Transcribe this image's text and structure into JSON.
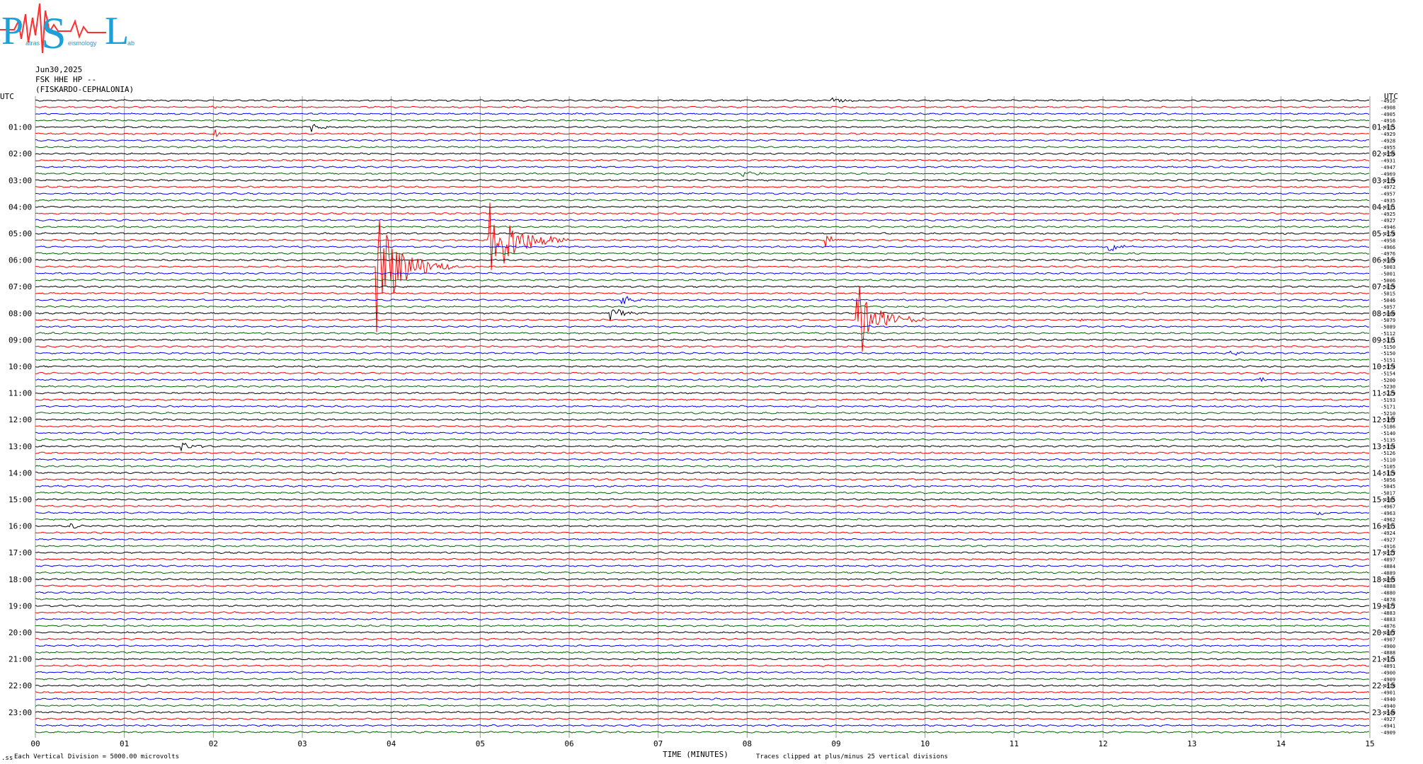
{
  "logo": {
    "letters": [
      "P",
      "S",
      "L"
    ],
    "small_words": [
      "atras",
      "eismology",
      "ab"
    ]
  },
  "header": {
    "date": "Jun30,2025",
    "channel": "FSK HHE HP --",
    "station": "(FISKARDO-CEPHALONIA)"
  },
  "footer": {
    "scale_note": "Each Vertical Division = 5000.00 microvolts",
    "clip_note": "Traces clipped at plus/minus 25 vertical divisions",
    "corner_mark": ".ss"
  },
  "colors": {
    "cycle": [
      "#000000",
      "#ff0000",
      "#0000ff",
      "#006400"
    ],
    "grid": "#9a9a9a",
    "logo_blue": "#1ca0d8",
    "logo_red": "#ff3030"
  },
  "chart_data": {
    "type": "helicorder",
    "xlabel": "TIME (MINUTES)",
    "x_ticks": [
      "00",
      "01",
      "02",
      "03",
      "04",
      "05",
      "06",
      "07",
      "08",
      "09",
      "10",
      "11",
      "12",
      "13",
      "14",
      "15"
    ],
    "xlim": [
      0,
      15
    ],
    "left_axis_label": "UTC",
    "right_axis_label": "UTC",
    "left_hour_labels": [
      "01:00",
      "02:00",
      "03:00",
      "04:00",
      "05:00",
      "06:00",
      "07:00",
      "08:00",
      "09:00",
      "10:00",
      "11:00",
      "12:00",
      "13:00",
      "14:00",
      "15:00",
      "16:00",
      "17:00",
      "18:00",
      "19:00",
      "20:00",
      "21:00",
      "22:00",
      "23:00"
    ],
    "right_hour_labels": [
      "01:15",
      "02:15",
      "03:15",
      "04:15",
      "05:15",
      "06:15",
      "07:15",
      "08:15",
      "09:15",
      "10:15",
      "11:15",
      "12:15",
      "13:15",
      "14:15",
      "15:15",
      "16:15",
      "17:15",
      "18:15",
      "19:15",
      "20:15",
      "21:15",
      "22:15",
      "23:15"
    ],
    "trace_count": 96,
    "trace_minutes": 15,
    "offsets": [
      "4916",
      "4908",
      "4905",
      "4916",
      "4915",
      "4929",
      "4928",
      "4955",
      "4956",
      "4931",
      "4947",
      "4969",
      "4939",
      "4972",
      "4957",
      "4935",
      "4931",
      "4925",
      "4927",
      "4946",
      "4978",
      "4958",
      "4966",
      "4976",
      "4989",
      "5003",
      "5001",
      "5006",
      "5019",
      "5015",
      "5046",
      "5057",
      "5060",
      "5079",
      "5089",
      "5112",
      "5131",
      "5150",
      "5150",
      "5151",
      "5174",
      "5154",
      "5200",
      "5230",
      "5229",
      "5193",
      "5171",
      "5210",
      "5197",
      "5186",
      "5140",
      "5135",
      "5114",
      "5126",
      "5110",
      "5105",
      "5119",
      "5056",
      "5045",
      "5017",
      "4985",
      "4967",
      "4963",
      "4962",
      "4951",
      "4924",
      "4927",
      "4916",
      "4917",
      "4897",
      "4884",
      "4889",
      "4893",
      "4888",
      "4880",
      "4878",
      "4877",
      "4883",
      "4883",
      "4876",
      "4887",
      "4907",
      "4900",
      "4888",
      "4911",
      "4891",
      "4900",
      "4909",
      "4918",
      "4901",
      "4940",
      "4940",
      "4940",
      "4927",
      "4941",
      "4909"
    ],
    "events": [
      {
        "trace": 0,
        "minute": 8.95,
        "amp": 0.55,
        "dur": 0.4
      },
      {
        "trace": 1,
        "minute": 2.0,
        "amp": 0.12,
        "dur": 0.6
      },
      {
        "trace": 4,
        "minute": 3.12,
        "amp": 0.55,
        "dur": 0.35
      },
      {
        "trace": 5,
        "minute": 2.02,
        "amp": 0.45,
        "dur": 0.2
      },
      {
        "trace": 11,
        "minute": 7.95,
        "amp": 0.45,
        "dur": 0.4
      },
      {
        "trace": 21,
        "minute": 8.9,
        "amp": 0.6,
        "dur": 0.35
      },
      {
        "trace": 22,
        "minute": 12.08,
        "amp": 0.7,
        "dur": 0.35
      },
      {
        "trace": 25,
        "minute": 3.85,
        "amp": 8.0,
        "dur": 0.9
      },
      {
        "trace": 21,
        "minute": 5.1,
        "amp": 7.0,
        "dur": 0.9
      },
      {
        "trace": 30,
        "minute": 6.55,
        "amp": 1.2,
        "dur": 0.5
      },
      {
        "trace": 32,
        "minute": 6.45,
        "amp": 1.1,
        "dur": 0.5
      },
      {
        "trace": 33,
        "minute": 9.25,
        "amp": 4.2,
        "dur": 0.8
      },
      {
        "trace": 33,
        "minute": 11.75,
        "amp": 0.25,
        "dur": 0.2
      },
      {
        "trace": 38,
        "minute": 13.45,
        "amp": 0.25,
        "dur": 0.45
      },
      {
        "trace": 42,
        "minute": 13.78,
        "amp": 0.3,
        "dur": 0.2
      },
      {
        "trace": 52,
        "minute": 1.65,
        "amp": 0.55,
        "dur": 0.45
      },
      {
        "trace": 53,
        "minute": 10.3,
        "amp": 0.25,
        "dur": 0.25
      },
      {
        "trace": 54,
        "minute": 4.8,
        "amp": 0.2,
        "dur": 0.2
      },
      {
        "trace": 55,
        "minute": 13.9,
        "amp": 0.15,
        "dur": 0.15
      },
      {
        "trace": 62,
        "minute": 14.42,
        "amp": 0.4,
        "dur": 0.2
      },
      {
        "trace": 64,
        "minute": 0.4,
        "amp": 0.3,
        "dur": 0.3
      }
    ]
  }
}
